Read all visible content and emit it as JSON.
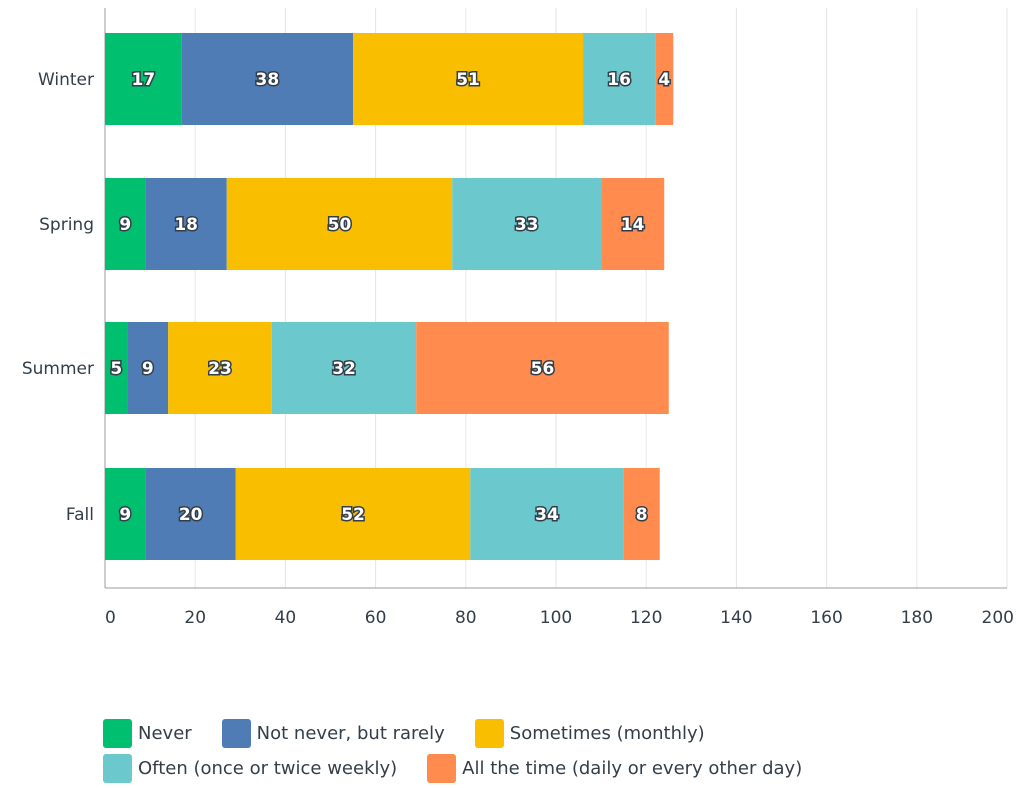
{
  "chart_data": {
    "type": "bar",
    "orientation": "horizontal",
    "stacked": true,
    "categories": [
      "Winter",
      "Spring",
      "Summer",
      "Fall"
    ],
    "series": [
      {
        "name": "Never",
        "color": "#00bf6f",
        "values": [
          17,
          9,
          5,
          9
        ]
      },
      {
        "name": "Not never, but rarely",
        "color": "#507cb6",
        "values": [
          38,
          18,
          9,
          20
        ]
      },
      {
        "name": "Sometimes (monthly)",
        "color": "#f9be00",
        "values": [
          51,
          50,
          23,
          52
        ]
      },
      {
        "name": "Often (once or twice weekly)",
        "color": "#6bc8cd",
        "values": [
          16,
          33,
          32,
          34
        ]
      },
      {
        "name": "All the time (daily or every other day)",
        "color": "#ff8b4f",
        "values": [
          4,
          14,
          56,
          8
        ]
      }
    ],
    "xlim": [
      0,
      200
    ],
    "xticks": [
      0,
      20,
      40,
      60,
      80,
      100,
      120,
      140,
      160,
      180,
      200
    ],
    "grid": true,
    "legend_position": "bottom"
  }
}
